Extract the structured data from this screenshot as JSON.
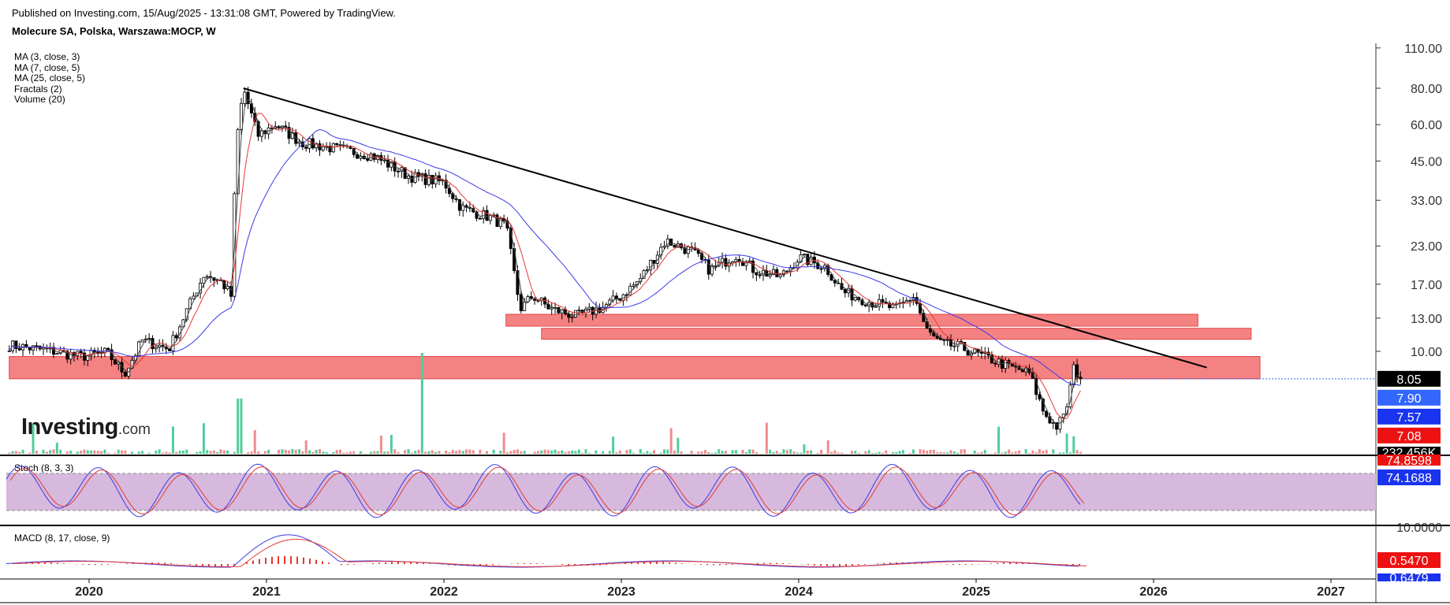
{
  "header": {
    "published": "Published on Investing.com, 15/Aug/2025 - 13:31:08 GMT, Powered by TradingView.",
    "symbol": "Molecure SA, Polska, Warszawa:MOCP, W"
  },
  "indicators": [
    "MA (3, close, 3)",
    "MA (7, close, 5)",
    "MA (25, close, 5)",
    "Fractals (2)",
    "Volume (20)"
  ],
  "logo": {
    "main": "Investing",
    "suffix": ".com"
  },
  "panels": {
    "stoch_label": "Stoch (8, 3, 3)",
    "macd_label": "MACD (8, 17, close, 9)"
  },
  "colors": {
    "candle": "#000000",
    "ma_fast": "#444444",
    "ma_mid": "#e53935",
    "ma_slow": "#3a3ae8",
    "zone": "#f47575",
    "stoch_band": "#d6b9dd",
    "volume_up": "#4fce9a",
    "volume_down": "#f08c8c",
    "badge_price": "#000000",
    "badge_blue": "#3366ff",
    "badge_red": "#ee1111"
  },
  "chart_data": {
    "type": "candlestick",
    "x_axis": {
      "ticks": [
        "2020",
        "2021",
        "2022",
        "2023",
        "2024",
        "2025",
        "2026",
        "2027"
      ],
      "tick_years": [
        2020,
        2021,
        2022,
        2023,
        2024,
        2025,
        2026,
        2027
      ],
      "range": [
        2019.55,
        2027.5
      ]
    },
    "y_axis": {
      "scale": "log",
      "ticks": [
        "110.00",
        "80.00",
        "60.00",
        "45.00",
        "33.00",
        "23.00",
        "17.00",
        "13.00",
        "10.00"
      ],
      "tick_values": [
        110,
        80,
        60,
        45,
        33,
        23,
        17,
        13,
        10
      ]
    },
    "price_path": [
      [
        2019.55,
        10.5
      ],
      [
        2019.8,
        10.0
      ],
      [
        2019.95,
        9.6
      ],
      [
        2020.1,
        9.9
      ],
      [
        2020.2,
        8.4
      ],
      [
        2020.3,
        10.9
      ],
      [
        2020.45,
        10.2
      ],
      [
        2020.55,
        13.8
      ],
      [
        2020.65,
        18.5
      ],
      [
        2020.75,
        17.2
      ],
      [
        2020.8,
        15.5
      ],
      [
        2020.83,
        52.0
      ],
      [
        2020.87,
        80.0
      ],
      [
        2020.95,
        55.0
      ],
      [
        2021.05,
        60.0
      ],
      [
        2021.2,
        52.0
      ],
      [
        2021.4,
        49.5
      ],
      [
        2021.6,
        47.0
      ],
      [
        2021.8,
        40.0
      ],
      [
        2022.0,
        38.0
      ],
      [
        2022.1,
        31.0
      ],
      [
        2022.25,
        29.0
      ],
      [
        2022.35,
        27.0
      ],
      [
        2022.43,
        14.0
      ],
      [
        2022.5,
        15.5
      ],
      [
        2022.6,
        14.0
      ],
      [
        2022.75,
        13.2
      ],
      [
        2022.9,
        14.2
      ],
      [
        2023.0,
        15.5
      ],
      [
        2023.1,
        17.5
      ],
      [
        2023.25,
        24.0
      ],
      [
        2023.4,
        22.0
      ],
      [
        2023.5,
        19.0
      ],
      [
        2023.65,
        21.5
      ],
      [
        2023.75,
        19.0
      ],
      [
        2023.9,
        18.0
      ],
      [
        2024.0,
        21.0
      ],
      [
        2024.15,
        19.5
      ],
      [
        2024.25,
        16.0
      ],
      [
        2024.4,
        14.8
      ],
      [
        2024.55,
        14.0
      ],
      [
        2024.65,
        15.5
      ],
      [
        2024.72,
        11.8
      ],
      [
        2024.8,
        10.6
      ],
      [
        2024.9,
        10.4
      ],
      [
        2025.0,
        9.8
      ],
      [
        2025.1,
        9.3
      ],
      [
        2025.2,
        8.8
      ],
      [
        2025.3,
        8.4
      ],
      [
        2025.38,
        6.2
      ],
      [
        2025.45,
        5.5
      ],
      [
        2025.5,
        6.0
      ],
      [
        2025.55,
        8.7
      ],
      [
        2025.6,
        8.05
      ]
    ],
    "trendline": {
      "from": [
        2020.87,
        80.0
      ],
      "to": [
        2026.3,
        8.8
      ]
    },
    "zones": [
      {
        "x": [
          2019.55,
          2026.6
        ],
        "y": [
          8.05,
          9.6
        ]
      },
      {
        "x": [
          2022.35,
          2026.25
        ],
        "y": [
          12.2,
          13.4
        ]
      },
      {
        "x": [
          2022.55,
          2026.55
        ],
        "y": [
          11.0,
          12.0
        ]
      }
    ],
    "last_price": 8.05,
    "price_badges": [
      {
        "label": "8.05",
        "color": "#000000"
      },
      {
        "label": "7.90",
        "color": "#3366ff"
      },
      {
        "label": "7.57",
        "color": "#1a33ee"
      },
      {
        "label": "7.08",
        "color": "#ee1111"
      }
    ],
    "volume_badge": "232.456K",
    "stoch": {
      "ticks": [
        "10.0000"
      ],
      "badges": [
        {
          "label": "74.8598",
          "color": "#ee1111"
        },
        {
          "label": "74.1688",
          "color": "#1a33ee"
        }
      ]
    },
    "macd": {
      "ticks": [
        "10.0000"
      ],
      "badges": [
        {
          "label": "0.5470",
          "color": "#ee1111"
        },
        {
          "label": "0.6479",
          "color": "#1a33ee"
        }
      ]
    }
  }
}
